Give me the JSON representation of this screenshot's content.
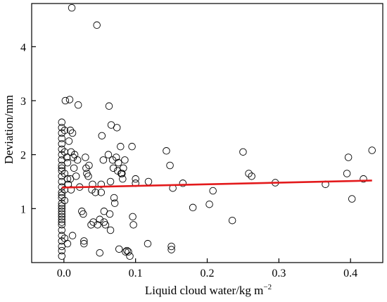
{
  "chart_data": {
    "type": "scatter",
    "xlabel": "Liquid cloud water/kg m",
    "xlabel_superscript": "−2",
    "ylabel": "Deviation/mm",
    "xlim": [
      -0.045,
      0.445
    ],
    "ylim": [
      0.0,
      4.8
    ],
    "x_ticks": [
      0.0,
      0.1,
      0.2,
      0.3,
      0.4
    ],
    "x_tick_labels": [
      "0.0",
      "0.1",
      "0.2",
      "0.3",
      "0.4"
    ],
    "y_ticks": [
      1,
      2,
      3,
      4
    ],
    "y_tick_labels": [
      "1",
      "2",
      "3",
      "4"
    ],
    "grid": false,
    "colors": {
      "points": "#000000",
      "fit_line": "#e31a1c"
    },
    "fit_line": {
      "x": [
        -0.003,
        0.43
      ],
      "y": [
        1.39,
        1.52
      ]
    },
    "points": [
      [
        -0.003,
        2.6
      ],
      [
        -0.003,
        2.5
      ],
      [
        -0.003,
        2.4
      ],
      [
        -0.003,
        2.3
      ],
      [
        -0.003,
        2.2
      ],
      [
        -0.003,
        2.1
      ],
      [
        -0.003,
        2.0
      ],
      [
        -0.003,
        1.9
      ],
      [
        -0.003,
        1.8
      ],
      [
        -0.003,
        1.7
      ],
      [
        -0.003,
        1.6
      ],
      [
        -0.003,
        1.5
      ],
      [
        -0.003,
        1.4
      ],
      [
        -0.003,
        1.3
      ],
      [
        -0.003,
        1.2
      ],
      [
        -0.003,
        1.1
      ],
      [
        -0.003,
        1.0
      ],
      [
        -0.003,
        0.95
      ],
      [
        -0.003,
        0.9
      ],
      [
        -0.003,
        0.85
      ],
      [
        -0.003,
        0.8
      ],
      [
        -0.003,
        0.75
      ],
      [
        -0.003,
        0.7
      ],
      [
        -0.003,
        0.6
      ],
      [
        -0.003,
        0.5
      ],
      [
        -0.003,
        0.4
      ],
      [
        -0.003,
        0.3
      ],
      [
        -0.003,
        0.22
      ],
      [
        -0.003,
        0.12
      ],
      [
        -0.003,
        1.75
      ],
      [
        -0.003,
        1.25
      ],
      [
        -0.003,
        1.05
      ],
      [
        0.001,
        2.45
      ],
      [
        0.001,
        2.05
      ],
      [
        0.001,
        1.65
      ],
      [
        0.001,
        1.35
      ],
      [
        0.001,
        1.15
      ],
      [
        0.001,
        0.45
      ],
      [
        0.002,
        3.0
      ],
      [
        0.004,
        1.95
      ],
      [
        0.005,
        1.85
      ],
      [
        0.005,
        1.55
      ],
      [
        0.006,
        1.45
      ],
      [
        0.005,
        0.35
      ],
      [
        0.007,
        2.25
      ],
      [
        0.008,
        3.02
      ],
      [
        0.009,
        2.45
      ],
      [
        0.009,
        1.55
      ],
      [
        0.01,
        2.05
      ],
      [
        0.01,
        1.35
      ],
      [
        0.011,
        4.72
      ],
      [
        0.012,
        2.4
      ],
      [
        0.012,
        0.5
      ],
      [
        0.013,
        1.95
      ],
      [
        0.014,
        1.75
      ],
      [
        0.015,
        2.0
      ],
      [
        0.017,
        1.6
      ],
      [
        0.019,
        1.9
      ],
      [
        0.02,
        2.92
      ],
      [
        0.022,
        1.4
      ],
      [
        0.025,
        0.95
      ],
      [
        0.027,
        0.9
      ],
      [
        0.028,
        0.4
      ],
      [
        0.028,
        0.35
      ],
      [
        0.03,
        1.95
      ],
      [
        0.031,
        1.75
      ],
      [
        0.032,
        1.65
      ],
      [
        0.034,
        1.6
      ],
      [
        0.035,
        1.8
      ],
      [
        0.038,
        0.7
      ],
      [
        0.039,
        1.35
      ],
      [
        0.04,
        1.45
      ],
      [
        0.041,
        0.75
      ],
      [
        0.044,
        1.3
      ],
      [
        0.046,
        4.4
      ],
      [
        0.047,
        0.7
      ],
      [
        0.05,
        0.8
      ],
      [
        0.05,
        0.18
      ],
      [
        0.052,
        1.45
      ],
      [
        0.052,
        1.3
      ],
      [
        0.053,
        2.35
      ],
      [
        0.055,
        1.9
      ],
      [
        0.056,
        0.95
      ],
      [
        0.056,
        0.75
      ],
      [
        0.058,
        0.7
      ],
      [
        0.062,
        2.0
      ],
      [
        0.063,
        2.9
      ],
      [
        0.064,
        0.9
      ],
      [
        0.065,
        1.5
      ],
      [
        0.065,
        0.6
      ],
      [
        0.066,
        2.55
      ],
      [
        0.068,
        1.9
      ],
      [
        0.069,
        1.75
      ],
      [
        0.07,
        1.2
      ],
      [
        0.071,
        1.1
      ],
      [
        0.073,
        1.95
      ],
      [
        0.074,
        2.5
      ],
      [
        0.075,
        1.7
      ],
      [
        0.076,
        1.85
      ],
      [
        0.077,
        0.25
      ],
      [
        0.079,
        2.15
      ],
      [
        0.08,
        1.65
      ],
      [
        0.081,
        1.65
      ],
      [
        0.082,
        1.55
      ],
      [
        0.083,
        1.75
      ],
      [
        0.085,
        1.9
      ],
      [
        0.086,
        0.2
      ],
      [
        0.088,
        0.22
      ],
      [
        0.09,
        0.2
      ],
      [
        0.092,
        0.12
      ],
      [
        0.095,
        2.15
      ],
      [
        0.096,
        0.85
      ],
      [
        0.097,
        0.7
      ],
      [
        0.1,
        1.55
      ],
      [
        0.1,
        1.47
      ],
      [
        0.117,
        0.35
      ],
      [
        0.118,
        1.5
      ],
      [
        0.143,
        2.07
      ],
      [
        0.148,
        1.8
      ],
      [
        0.15,
        0.3
      ],
      [
        0.15,
        0.24
      ],
      [
        0.152,
        1.38
      ],
      [
        0.166,
        1.47
      ],
      [
        0.18,
        1.02
      ],
      [
        0.203,
        1.08
      ],
      [
        0.208,
        1.33
      ],
      [
        0.235,
        0.78
      ],
      [
        0.25,
        2.05
      ],
      [
        0.258,
        1.65
      ],
      [
        0.262,
        1.6
      ],
      [
        0.295,
        1.48
      ],
      [
        0.365,
        1.45
      ],
      [
        0.395,
        1.65
      ],
      [
        0.397,
        1.95
      ],
      [
        0.402,
        1.18
      ],
      [
        0.418,
        1.55
      ],
      [
        0.43,
        2.08
      ]
    ]
  }
}
